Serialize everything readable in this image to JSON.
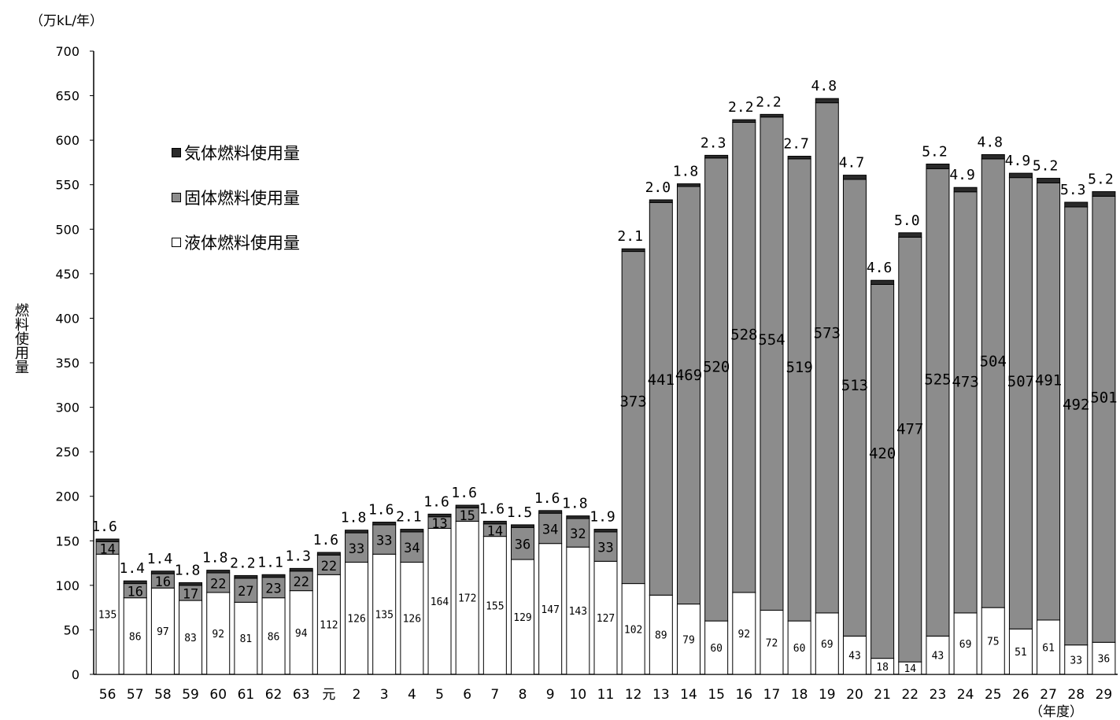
{
  "unit_label": "（万kL/年）",
  "ylabel": "燃料使用量",
  "xunit": "（年度）",
  "legend": [
    {
      "key": "gas",
      "label": "気体燃料使用量",
      "color": "#2a2a2a"
    },
    {
      "key": "solid",
      "label": "固体燃料使用量",
      "color": "#8c8c8c"
    },
    {
      "key": "liquid",
      "label": "液体燃料使用量",
      "color": "#ffffff"
    }
  ],
  "chart_data": {
    "type": "bar",
    "stacked": true,
    "ylim": [
      0,
      700
    ],
    "yticks": [
      0,
      50,
      100,
      150,
      200,
      250,
      300,
      350,
      400,
      450,
      500,
      550,
      600,
      650,
      700
    ],
    "grid": false,
    "legend_position": "top-left",
    "categories": [
      "56",
      "57",
      "58",
      "59",
      "60",
      "61",
      "62",
      "63",
      "元",
      "2",
      "3",
      "4",
      "5",
      "6",
      "7",
      "8",
      "9",
      "10",
      "11",
      "12",
      "13",
      "14",
      "15",
      "16",
      "17",
      "18",
      "19",
      "20",
      "21",
      "22",
      "23",
      "24",
      "25",
      "26",
      "27",
      "28",
      "29"
    ],
    "series": [
      {
        "name": "液体燃料使用量",
        "color": "#ffffff",
        "values": [
          135,
          86,
          97,
          83,
          92,
          81,
          86,
          94,
          112,
          126,
          135,
          126,
          164,
          172,
          155,
          129,
          147,
          143,
          127,
          102,
          89,
          79,
          60,
          92,
          72,
          60,
          69,
          43,
          18,
          14,
          43,
          69,
          75,
          51,
          61,
          33,
          36
        ]
      },
      {
        "name": "固体燃料使用量",
        "color": "#8c8c8c",
        "values": [
          14,
          16,
          16,
          17,
          22,
          27,
          23,
          22,
          22,
          33,
          33,
          34,
          13,
          15,
          14,
          36,
          34,
          32,
          33,
          373,
          441,
          469,
          520,
          528,
          554,
          519,
          573,
          513,
          420,
          477,
          525,
          473,
          504,
          507,
          491,
          492,
          501
        ]
      },
      {
        "name": "気体燃料使用量",
        "color": "#2a2a2a",
        "value_labels": [
          "1.6",
          "1.4",
          "1.4",
          "1.8",
          "1.8",
          "2.2",
          "1.1",
          "1.3",
          "1.6",
          "1.8",
          "1.6",
          "2.1",
          "1.6",
          "1.6",
          "1.6",
          "1.5",
          "1.6",
          "1.8",
          "1.9",
          "2.1",
          "2.0",
          "1.8",
          "2.3",
          "2.2",
          "2.2",
          "2.7",
          "4.8",
          "4.7",
          "4.6",
          "5.0",
          "5.2",
          "4.9",
          "4.8",
          "4.9",
          "5.2",
          "5.3",
          "5.2"
        ],
        "values": [
          1.6,
          1.4,
          1.4,
          1.8,
          1.8,
          2.2,
          1.1,
          1.3,
          1.6,
          1.8,
          1.6,
          2.1,
          1.6,
          1.6,
          1.6,
          1.5,
          1.6,
          1.8,
          1.9,
          2.1,
          2.0,
          1.8,
          2.3,
          2.2,
          2.2,
          2.7,
          4.8,
          4.7,
          4.6,
          5.0,
          5.2,
          4.9,
          4.8,
          4.9,
          5.2,
          5.3,
          5.2
        ]
      }
    ]
  }
}
